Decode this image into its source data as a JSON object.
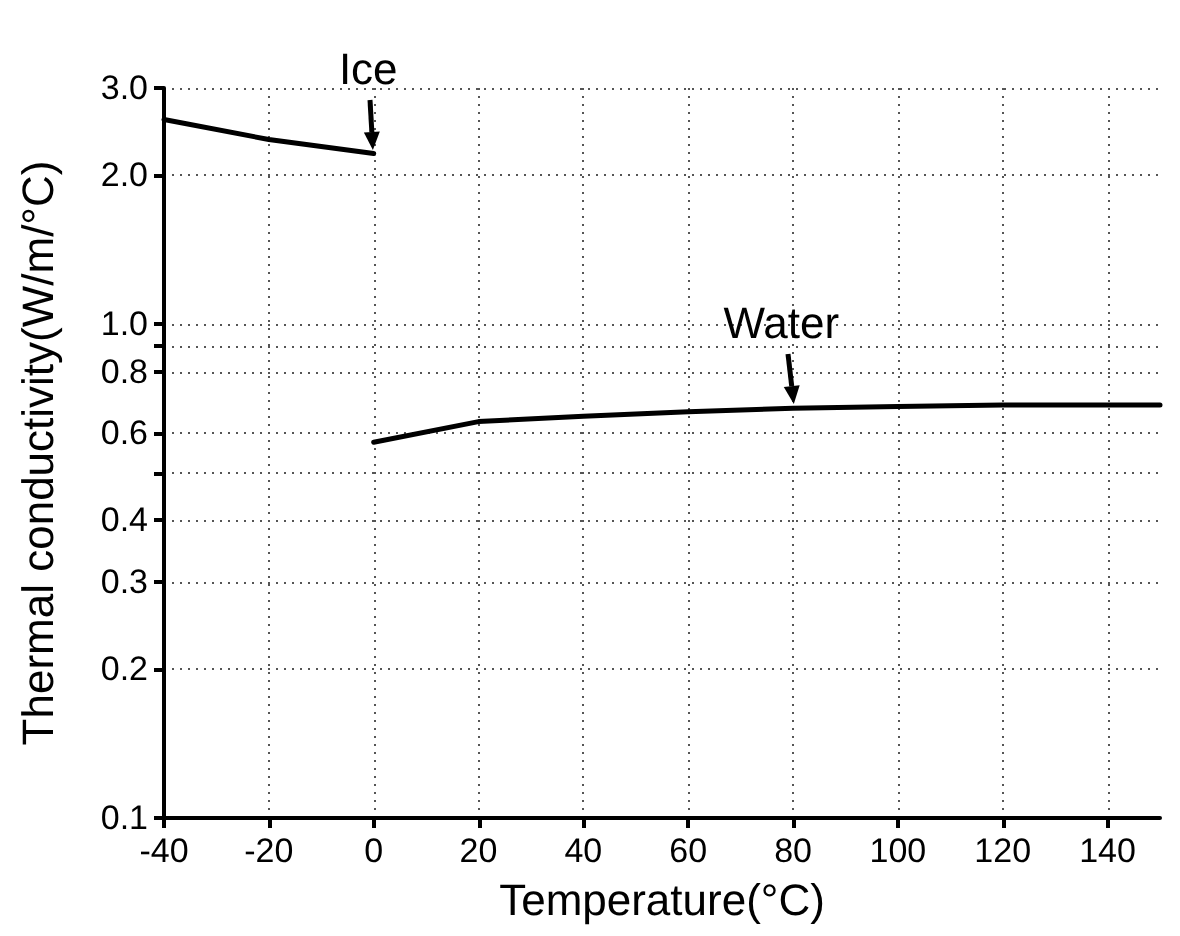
{
  "chart_data": {
    "type": "line",
    "xlabel": "Temperature(°C)",
    "ylabel": "Thermal conductivity(W/m/°C)",
    "series": [
      {
        "color": "#000000",
        "x": [
          -40,
          -20,
          0
        ],
        "values": [
          2.59,
          2.36,
          2.21
        ]
      },
      {
        "color": "#000000",
        "x": [
          0,
          20,
          40,
          60,
          80,
          100,
          120,
          150
        ],
        "values": [
          0.576,
          0.634,
          0.65,
          0.664,
          0.675,
          0.68,
          0.685,
          0.685
        ]
      }
    ],
    "xlim": [
      -40,
      150
    ],
    "xticks": [
      -40,
      -20,
      0,
      20,
      40,
      60,
      80,
      100,
      120,
      140
    ],
    "ylim": [
      0.1,
      3
    ],
    "yticks": [
      0.1,
      0.2,
      0.3,
      0.4,
      {
        "value": 0.5,
        "label": null
      },
      0.6,
      0.8,
      {
        "value": 0.9,
        "label": null
      },
      {
        "value": 1,
        "label": "1.0"
      },
      {
        "value": 2,
        "label": "2.0"
      },
      {
        "value": 3,
        "label": "3.0"
      }
    ],
    "log": "y",
    "grid": true,
    "marker": "none",
    "line_style": "solid",
    "annotations": [
      {
        "text": "Ice",
        "x": 0,
        "y": 2.21
      },
      {
        "text": "Water",
        "x": 80,
        "y": 0.675
      }
    ]
  }
}
